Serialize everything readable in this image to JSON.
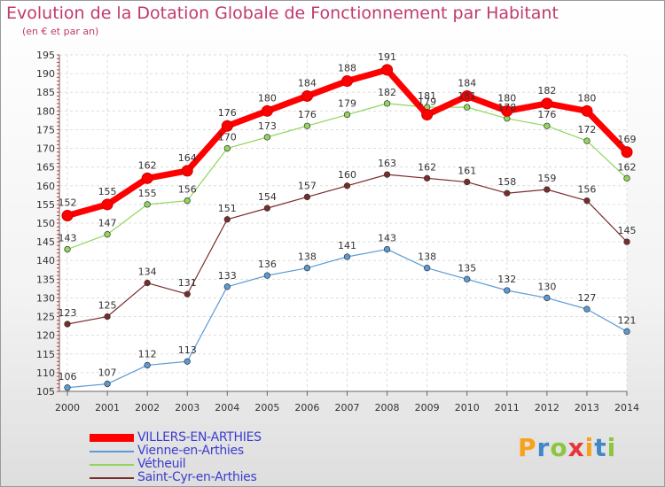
{
  "chart_data": {
    "type": "line",
    "title": "Evolution de la Dotation Globale de Fonctionnement par Habitant",
    "subtitle": "(en € et par an)",
    "xlabel": "",
    "ylabel": "",
    "ylim": [
      105,
      195
    ],
    "y_ticks": [
      105,
      110,
      115,
      120,
      125,
      130,
      135,
      140,
      145,
      150,
      155,
      160,
      165,
      170,
      175,
      180,
      185,
      190,
      195
    ],
    "grid": true,
    "legend_position": "bottom-left",
    "categories": [
      "2000",
      "2001",
      "2002",
      "2003",
      "2004",
      "2005",
      "2006",
      "2007",
      "2008",
      "2009",
      "2010",
      "2011",
      "2012",
      "2013",
      "2014"
    ],
    "series": [
      {
        "name": "VILLERS-EN-ARTHIES",
        "color": "#ff0000",
        "values": [
          152,
          155,
          162,
          164,
          176,
          180,
          184,
          188,
          191,
          179,
          184,
          180,
          182,
          180,
          169
        ]
      },
      {
        "name": "Vienne-en-Arthies",
        "color": "#5b9bd5",
        "values": [
          106,
          107,
          112,
          113,
          133,
          136,
          138,
          141,
          143,
          138,
          135,
          132,
          130,
          127,
          121
        ]
      },
      {
        "name": "Vétheuil",
        "color": "#8fd65a",
        "values": [
          143,
          147,
          155,
          156,
          170,
          173,
          176,
          179,
          182,
          181,
          181,
          178,
          176,
          172,
          162
        ]
      },
      {
        "name": "Saint-Cyr-en-Arthies",
        "color": "#7a2c2c",
        "values": [
          123,
          125,
          134,
          131,
          151,
          154,
          157,
          160,
          163,
          162,
          161,
          158,
          159,
          156,
          145
        ]
      }
    ]
  },
  "logo": {
    "letters": [
      "P",
      "r",
      "o",
      "x",
      "i",
      "t",
      "i"
    ],
    "colors": [
      "#f7a21b",
      "#3f87c8",
      "#8cc63f",
      "#e8343a",
      "#f7a21b",
      "#3f87c8",
      "#8cc63f"
    ]
  }
}
